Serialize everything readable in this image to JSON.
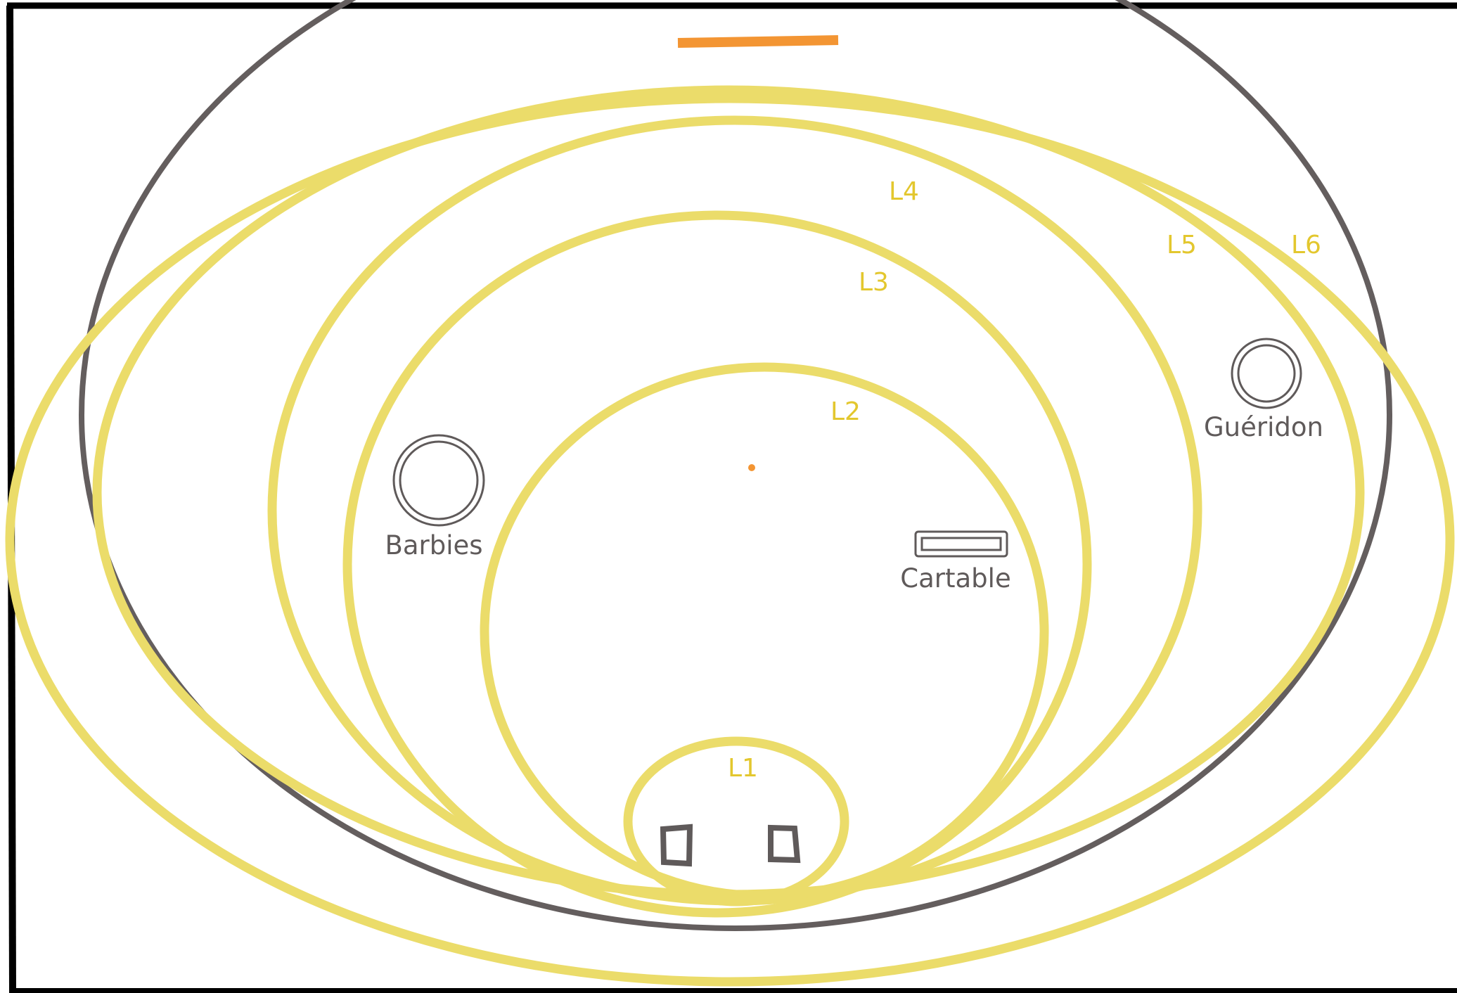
{
  "colors": {
    "background": "#ffffff",
    "frame": "#000000",
    "room_outline": "#645e5e",
    "zone": "#ebdc6a",
    "zone_label": "#e3c72e",
    "object": "#5f5a5a",
    "marker": "#f39533"
  },
  "zones": [
    {
      "id": "L1",
      "label": "L1"
    },
    {
      "id": "L2",
      "label": "L2"
    },
    {
      "id": "L3",
      "label": "L3"
    },
    {
      "id": "L4",
      "label": "L4"
    },
    {
      "id": "L5",
      "label": "L5"
    },
    {
      "id": "L6",
      "label": "L6"
    }
  ],
  "objects": {
    "barbies": {
      "label": "Barbies",
      "icon": "double-circle-icon"
    },
    "cartable": {
      "label": "Cartable",
      "icon": "rounded-rectangle-icon"
    },
    "gueridon": {
      "label": "Guéridon",
      "icon": "double-circle-icon"
    },
    "feet": {
      "icon": "square-outline-icon"
    }
  },
  "markers": {
    "top_bar": "orange-line-icon",
    "center_point": "orange-dot-icon"
  }
}
